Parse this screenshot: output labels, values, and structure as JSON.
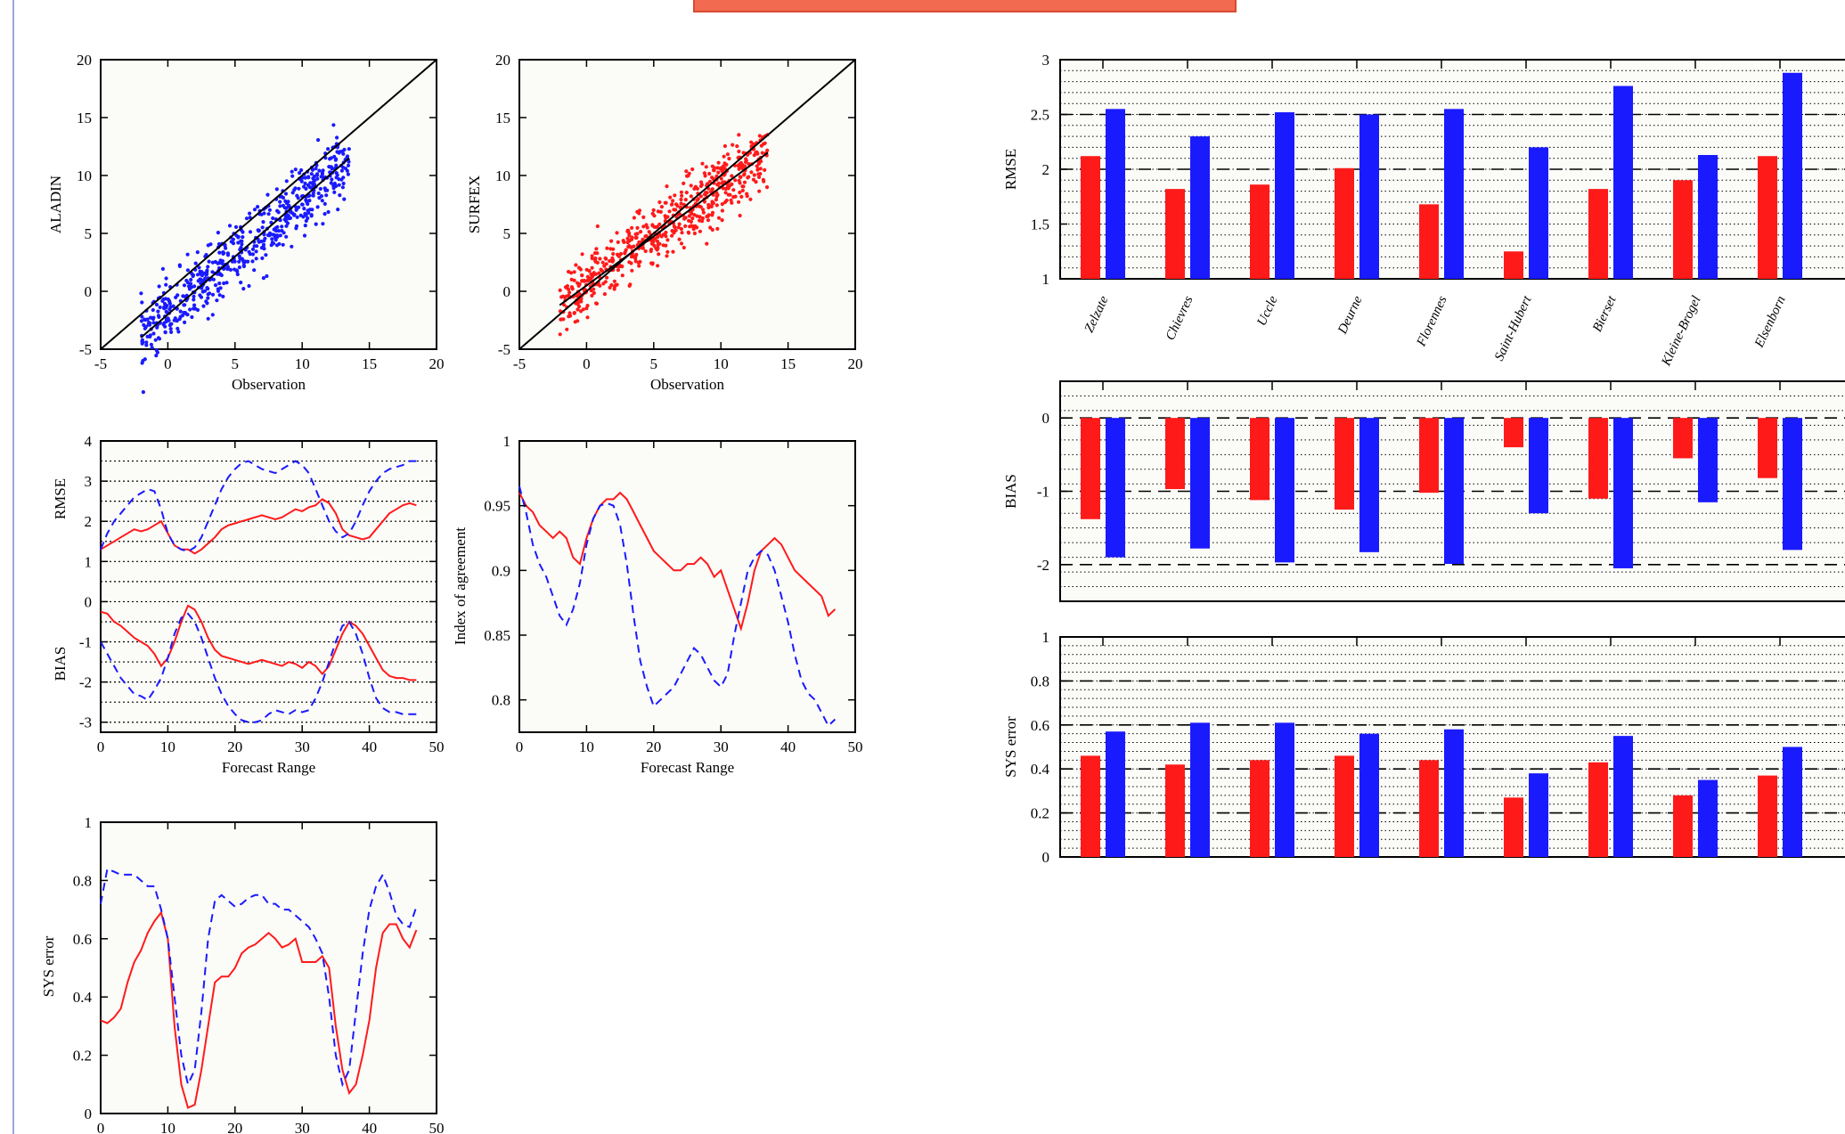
{
  "colors": {
    "aladin": "#1a1aff",
    "surfex": "#ff1a1a",
    "banner": "#f26a4f",
    "frame": "#9aa4d8"
  },
  "chart_data": [
    {
      "id": "scatter-aladin",
      "type": "scatter",
      "xlabel": "Observation",
      "ylabel": "ALADIN",
      "xlim": [
        -5,
        20
      ],
      "ylim": [
        -5,
        20
      ],
      "xticks": [
        "-5",
        "0",
        "5",
        "10",
        "15",
        "20"
      ],
      "yticks": [
        "-5",
        "0",
        "5",
        "10",
        "15",
        "20"
      ],
      "color": "#1a1aff",
      "point_count": 600,
      "obs_range": [
        -2,
        13.5
      ],
      "regression_line": {
        "slope": 1.0,
        "intercept": -2.0
      },
      "lines": [
        "identity",
        "regression"
      ]
    },
    {
      "id": "scatter-surfex",
      "type": "scatter",
      "xlabel": "Observation",
      "ylabel": "SURFEX",
      "xlim": [
        -5,
        20
      ],
      "ylim": [
        -5,
        20
      ],
      "xticks": [
        "-5",
        "0",
        "5",
        "10",
        "15",
        "20"
      ],
      "yticks": [
        "-5",
        "0",
        "5",
        "10",
        "15",
        "20"
      ],
      "color": "#ff1a1a",
      "point_count": 600,
      "obs_range": [
        -2,
        13.5
      ],
      "regression_line": {
        "slope": 0.85,
        "intercept": 0.5
      },
      "lines": [
        "identity",
        "regression"
      ]
    },
    {
      "id": "rmse-bias-range",
      "type": "line",
      "xlabel": "Forecast Range",
      "ylabel_top": "RMSE",
      "ylabel_bottom": "BIAS",
      "xlim": [
        0,
        50
      ],
      "ylim": [
        -3.25,
        4
      ],
      "xticks": [
        "0",
        "10",
        "20",
        "30",
        "40",
        "50"
      ],
      "yticks": [
        "-3",
        "-2",
        "-1",
        "0",
        "1",
        "2",
        "3",
        "4"
      ],
      "grid": "dotted horizontal",
      "x": [
        0,
        1,
        2,
        3,
        4,
        5,
        6,
        7,
        8,
        9,
        10,
        11,
        12,
        13,
        14,
        15,
        16,
        17,
        18,
        19,
        20,
        21,
        22,
        23,
        24,
        25,
        26,
        27,
        28,
        29,
        30,
        31,
        32,
        33,
        34,
        35,
        36,
        37,
        38,
        39,
        40,
        41,
        42,
        43,
        44,
        45,
        46,
        47
      ],
      "series": [
        {
          "color": "#ff1a1a",
          "dash": "solid",
          "values": [
            1.3,
            1.4,
            1.5,
            1.6,
            1.7,
            1.8,
            1.75,
            1.8,
            1.9,
            2.0,
            1.7,
            1.4,
            1.3,
            1.3,
            1.2,
            1.3,
            1.45,
            1.6,
            1.8,
            1.9,
            1.95,
            2.0,
            2.05,
            2.1,
            2.15,
            2.1,
            2.05,
            2.1,
            2.2,
            2.3,
            2.25,
            2.35,
            2.4,
            2.55,
            2.45,
            2.2,
            1.8,
            1.65,
            1.6,
            1.55,
            1.6,
            1.8,
            2.0,
            2.2,
            2.3,
            2.4,
            2.45,
            2.4
          ]
        },
        {
          "color": "#1a1aff",
          "dash": "dashed",
          "values": [
            1.3,
            1.7,
            2.0,
            2.2,
            2.4,
            2.6,
            2.7,
            2.8,
            2.75,
            2.3,
            1.7,
            1.4,
            1.3,
            1.25,
            1.35,
            1.6,
            2.0,
            2.4,
            2.8,
            3.1,
            3.3,
            3.45,
            3.5,
            3.4,
            3.3,
            3.25,
            3.2,
            3.3,
            3.4,
            3.5,
            3.4,
            3.2,
            2.8,
            2.4,
            2.0,
            1.75,
            1.6,
            1.7,
            2.0,
            2.4,
            2.75,
            3.0,
            3.2,
            3.3,
            3.35,
            3.4,
            3.5,
            3.5
          ]
        },
        {
          "color": "#ff1a1a",
          "dash": "solid",
          "values": [
            -0.25,
            -0.3,
            -0.5,
            -0.6,
            -0.75,
            -0.9,
            -1.0,
            -1.1,
            -1.3,
            -1.6,
            -1.4,
            -1.0,
            -0.5,
            -0.1,
            -0.2,
            -0.5,
            -0.9,
            -1.2,
            -1.35,
            -1.4,
            -1.45,
            -1.5,
            -1.55,
            -1.5,
            -1.45,
            -1.5,
            -1.55,
            -1.6,
            -1.5,
            -1.55,
            -1.65,
            -1.5,
            -1.6,
            -1.8,
            -1.6,
            -1.2,
            -0.8,
            -0.5,
            -0.6,
            -0.8,
            -1.1,
            -1.4,
            -1.7,
            -1.85,
            -1.9,
            -1.9,
            -1.95,
            -1.95
          ]
        },
        {
          "color": "#1a1aff",
          "dash": "dashed",
          "values": [
            -1.0,
            -1.3,
            -1.6,
            -1.9,
            -2.1,
            -2.3,
            -2.35,
            -2.45,
            -2.2,
            -1.9,
            -1.4,
            -0.8,
            -0.4,
            -0.3,
            -0.5,
            -0.9,
            -1.4,
            -1.9,
            -2.3,
            -2.6,
            -2.8,
            -2.95,
            -3.0,
            -3.0,
            -2.95,
            -2.8,
            -2.7,
            -2.75,
            -2.8,
            -2.7,
            -2.75,
            -2.7,
            -2.4,
            -2.0,
            -1.5,
            -1.0,
            -0.6,
            -0.5,
            -0.8,
            -1.3,
            -1.9,
            -2.4,
            -2.65,
            -2.75,
            -2.75,
            -2.8,
            -2.8,
            -2.8
          ]
        }
      ]
    },
    {
      "id": "index-agreement",
      "type": "line",
      "xlabel": "Forecast Range",
      "ylabel": "Index of agreement",
      "xlim": [
        0,
        50
      ],
      "ylim": [
        0.775,
        1.0
      ],
      "xticks": [
        "0",
        "10",
        "20",
        "30",
        "40",
        "50"
      ],
      "yticks": [
        "0.8",
        "0.85",
        "0.9",
        "0.95",
        "1"
      ],
      "x": [
        0,
        1,
        2,
        3,
        4,
        5,
        6,
        7,
        8,
        9,
        10,
        11,
        12,
        13,
        14,
        15,
        16,
        17,
        18,
        19,
        20,
        21,
        22,
        23,
        24,
        25,
        26,
        27,
        28,
        29,
        30,
        31,
        32,
        33,
        34,
        35,
        36,
        37,
        38,
        39,
        40,
        41,
        42,
        43,
        44,
        45,
        46,
        47
      ],
      "series": [
        {
          "color": "#ff1a1a",
          "dash": "solid",
          "values": [
            0.96,
            0.95,
            0.945,
            0.935,
            0.93,
            0.925,
            0.93,
            0.925,
            0.91,
            0.905,
            0.925,
            0.94,
            0.95,
            0.955,
            0.955,
            0.96,
            0.955,
            0.945,
            0.935,
            0.925,
            0.915,
            0.91,
            0.905,
            0.9,
            0.9,
            0.905,
            0.905,
            0.91,
            0.905,
            0.895,
            0.9,
            0.885,
            0.87,
            0.855,
            0.875,
            0.9,
            0.915,
            0.92,
            0.925,
            0.92,
            0.91,
            0.9,
            0.895,
            0.89,
            0.885,
            0.88,
            0.865,
            0.87
          ]
        },
        {
          "color": "#1a1aff",
          "dash": "dashed",
          "values": [
            0.965,
            0.945,
            0.92,
            0.905,
            0.895,
            0.88,
            0.865,
            0.858,
            0.87,
            0.89,
            0.92,
            0.94,
            0.95,
            0.952,
            0.95,
            0.935,
            0.905,
            0.865,
            0.83,
            0.81,
            0.795,
            0.8,
            0.805,
            0.81,
            0.82,
            0.83,
            0.84,
            0.835,
            0.825,
            0.815,
            0.81,
            0.82,
            0.85,
            0.875,
            0.9,
            0.91,
            0.915,
            0.912,
            0.9,
            0.88,
            0.86,
            0.835,
            0.815,
            0.805,
            0.8,
            0.79,
            0.78,
            0.785
          ]
        }
      ]
    },
    {
      "id": "sys-error-range",
      "type": "line",
      "xlabel": "",
      "ylabel": "SYS error",
      "xlim": [
        0,
        50
      ],
      "ylim": [
        0,
        1
      ],
      "xticks": [
        "0",
        "10",
        "20",
        "30",
        "40",
        "50"
      ],
      "yticks": [
        "0",
        "0.2",
        "0.4",
        "0.6",
        "0.8",
        "1"
      ],
      "x": [
        0,
        1,
        2,
        3,
        4,
        5,
        6,
        7,
        8,
        9,
        10,
        11,
        12,
        13,
        14,
        15,
        16,
        17,
        18,
        19,
        20,
        21,
        22,
        23,
        24,
        25,
        26,
        27,
        28,
        29,
        30,
        31,
        32,
        33,
        34,
        35,
        36,
        37,
        38,
        39,
        40,
        41,
        42,
        43,
        44,
        45,
        46,
        47
      ],
      "series": [
        {
          "color": "#ff1a1a",
          "dash": "solid",
          "values": [
            0.32,
            0.31,
            0.33,
            0.36,
            0.45,
            0.52,
            0.56,
            0.62,
            0.66,
            0.69,
            0.6,
            0.3,
            0.1,
            0.02,
            0.03,
            0.15,
            0.3,
            0.45,
            0.47,
            0.47,
            0.5,
            0.55,
            0.57,
            0.58,
            0.6,
            0.62,
            0.6,
            0.57,
            0.58,
            0.6,
            0.52,
            0.52,
            0.52,
            0.54,
            0.5,
            0.3,
            0.15,
            0.07,
            0.1,
            0.2,
            0.32,
            0.5,
            0.62,
            0.65,
            0.65,
            0.6,
            0.57,
            0.63
          ]
        },
        {
          "color": "#1a1aff",
          "dash": "dashed",
          "values": [
            0.72,
            0.84,
            0.83,
            0.82,
            0.82,
            0.82,
            0.8,
            0.78,
            0.78,
            0.7,
            0.6,
            0.4,
            0.2,
            0.1,
            0.15,
            0.35,
            0.6,
            0.73,
            0.75,
            0.73,
            0.71,
            0.72,
            0.74,
            0.75,
            0.75,
            0.72,
            0.72,
            0.7,
            0.7,
            0.68,
            0.66,
            0.64,
            0.6,
            0.55,
            0.4,
            0.2,
            0.1,
            0.15,
            0.35,
            0.55,
            0.7,
            0.78,
            0.82,
            0.76,
            0.68,
            0.65,
            0.64,
            0.71
          ]
        }
      ]
    },
    {
      "id": "station-rmse",
      "type": "bar",
      "ylabel": "RMSE",
      "ylim": [
        1,
        3
      ],
      "yticks": [
        "1",
        "1.5",
        "2",
        "2.5",
        "3"
      ],
      "categories": [
        "Zelzate",
        "Chievres",
        "Uccle",
        "Deurne",
        "Florennes",
        "Saint-Hubert",
        "Bierset",
        "Kleine-Brogel",
        "Elsenborn"
      ],
      "series": [
        {
          "color": "#ff1a1a",
          "values": [
            2.12,
            1.82,
            1.86,
            2.01,
            1.68,
            1.25,
            1.82,
            1.9,
            2.12
          ]
        },
        {
          "color": "#1a1aff",
          "values": [
            2.55,
            2.3,
            2.52,
            2.5,
            2.55,
            2.2,
            2.76,
            2.13,
            2.88
          ]
        }
      ]
    },
    {
      "id": "station-bias",
      "type": "bar",
      "ylabel": "BIAS",
      "ylim": [
        -2.5,
        0.5
      ],
      "yticks": [
        "-2",
        "-1",
        "0"
      ],
      "categories": [
        "Zelzate",
        "Chievres",
        "Uccle",
        "Deurne",
        "Florennes",
        "Saint-Hubert",
        "Bierset",
        "Kleine-Brogel",
        "Elsenborn"
      ],
      "series": [
        {
          "color": "#ff1a1a",
          "values": [
            -1.38,
            -0.97,
            -1.12,
            -1.25,
            -1.02,
            -0.4,
            -1.1,
            -0.55,
            -0.82
          ]
        },
        {
          "color": "#1a1aff",
          "values": [
            -1.9,
            -1.78,
            -1.97,
            -1.83,
            -1.99,
            -1.3,
            -2.05,
            -1.15,
            -1.8
          ]
        }
      ]
    },
    {
      "id": "station-sys",
      "type": "bar",
      "ylabel": "SYS error",
      "ylim": [
        0,
        1
      ],
      "yticks": [
        "0",
        "0.2",
        "0.4",
        "0.6",
        "0.8",
        "1"
      ],
      "categories": [
        "Zelzate",
        "Chievres",
        "Uccle",
        "Deurne",
        "Florennes",
        "Saint-Hubert",
        "Bierset",
        "Kleine-Brogel",
        "Elsenborn"
      ],
      "series": [
        {
          "color": "#ff1a1a",
          "values": [
            0.46,
            0.42,
            0.44,
            0.46,
            0.44,
            0.27,
            0.43,
            0.28,
            0.37
          ]
        },
        {
          "color": "#1a1aff",
          "values": [
            0.57,
            0.61,
            0.61,
            0.56,
            0.58,
            0.38,
            0.55,
            0.35,
            0.5
          ]
        }
      ]
    }
  ]
}
